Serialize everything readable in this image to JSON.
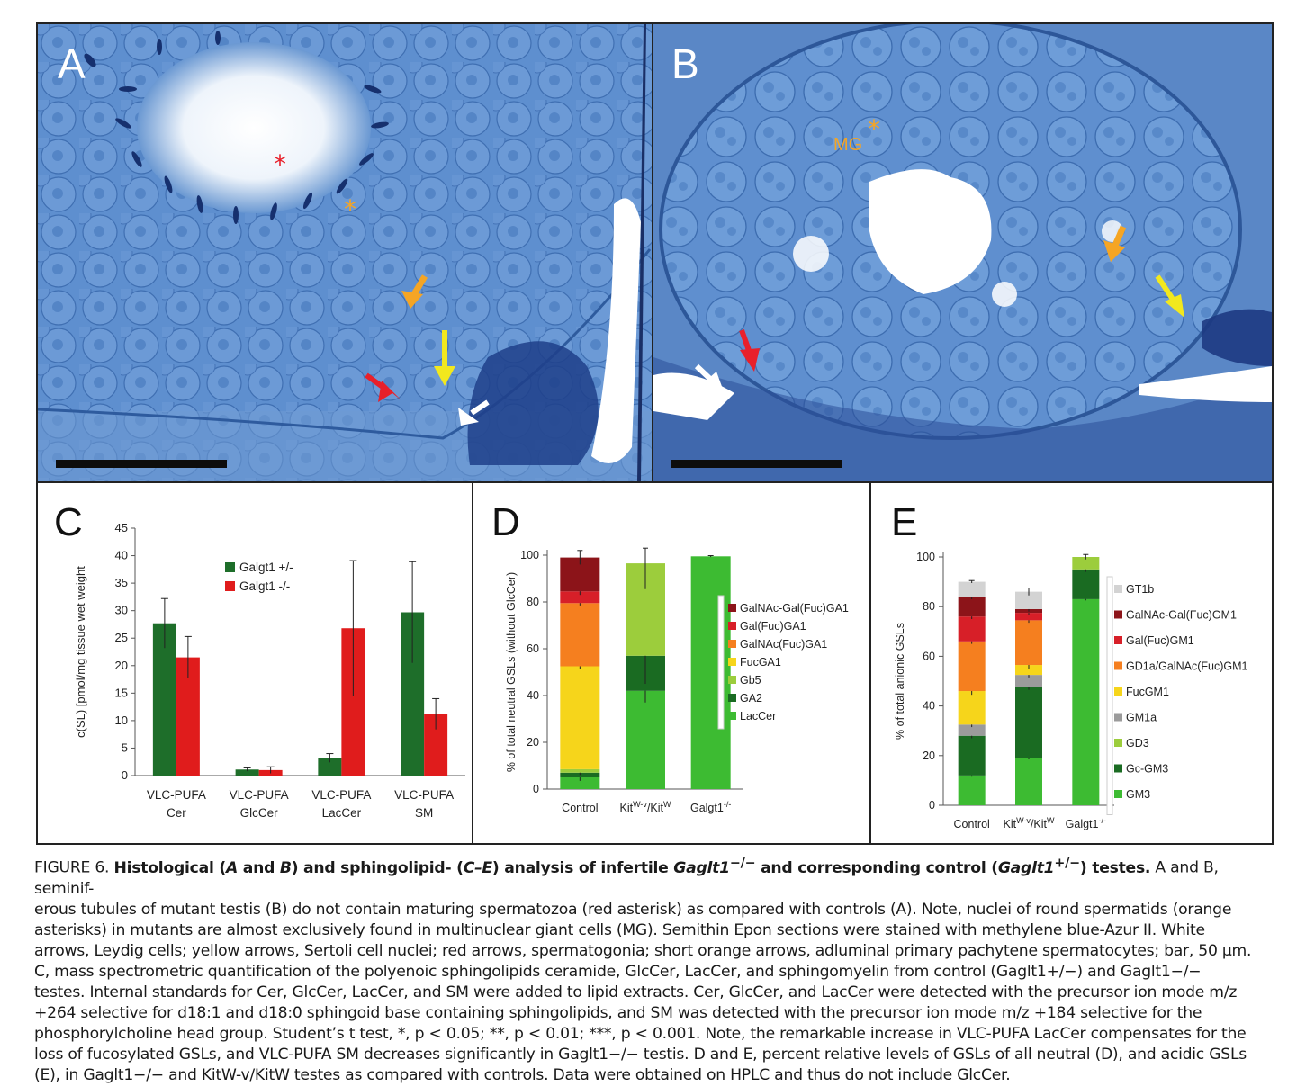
{
  "figure": {
    "panels": {
      "a": {
        "letter": "A",
        "markers": {
          "mg_label": ""
        }
      },
      "b": {
        "letter": "B",
        "mg_label": "MG"
      }
    },
    "colors": {
      "galgt_het": "#1e6e2a",
      "galgt_ko": "#e01c1c",
      "tissue_bg": "#5b8ccc",
      "red_marker": "#e8202a",
      "orange_marker": "#f5a524",
      "yellow_marker": "#f2e81e",
      "white_marker": "#ffffff"
    },
    "caption": {
      "label": "FIGURE 6. ",
      "title_1": "Histological (",
      "title_A": "A",
      "title_and": " and ",
      "title_B": "B",
      "title_2": ") and sphingolipid- (",
      "title_CE": "C–E",
      "title_3": ") analysis of infertile ",
      "title_gene1": "Gaglt1",
      "title_sup1": "−/−",
      "title_4": " and corresponding control (",
      "title_gene2": "Gaglt1",
      "title_sup2": "+/−",
      "title_5": ") testes.",
      "s1": " A and B, seminif-",
      "l2": "erous tubules of mutant testis (B) do not contain maturing spermatozoa (red asterisk) as compared with controls (A). Note, nuclei of round spermatids (orange",
      "l3": "asterisks) in mutants are almost exclusively found in multinuclear giant cells (MG). Semithin Epon sections were stained with methylene blue-Azur II. White",
      "l4": "arrows, Leydig cells; yellow arrows, Sertoli cell nuclei; red arrows, spermatogonia; short orange arrows, adluminal primary pachytene spermatocytes; bar, 50 μm.",
      "l5": "C, mass spectrometric quantification of the polyenoic sphingolipids ceramide, GlcCer, LacCer, and sphingomyelin from control (Gaglt1+/−) and Gaglt1−/−",
      "l6": "testes. Internal standards for Cer, GlcCer, LacCer, and SM were added to lipid extracts. Cer, GlcCer, and LacCer were detected with the precursor ion mode m/z",
      "l7": "+264 selective for d18:1 and d18:0 sphingoid base containing sphingolipids, and SM was detected with the precursor ion mode m/z +184 selective for the",
      "l8": "phosphorylcholine head group. Student’s t test, *, p < 0.05; **, p < 0.01; ***, p < 0.001. Note, the remarkable increase in VLC-PUFA LacCer compensates for the",
      "l9": "loss of fucosylated GSLs, and VLC-PUFA SM decreases significantly in Gaglt1−/− testis. D and E, percent relative levels of GSLs of all neutral (D), and acidic GSLs",
      "l10": "(E), in Gaglt1−/− and KitW-v/KitW testes as compared with controls. Data were obtained on HPLC and thus do not include GlcCer."
    }
  },
  "chart_data": [
    {
      "panel": "C",
      "type": "bar",
      "ylabel": "c(SL) [pmol/mg tissue wet weight",
      "ylim": [
        0,
        45
      ],
      "yticks": [
        0,
        5,
        10,
        15,
        20,
        25,
        30,
        35,
        40,
        45
      ],
      "categories": [
        "VLC-PUFA\nCer",
        "VLC-PUFA\nGlcCer",
        "VLC-PUFA\nLacCer",
        "VLC-PUFA\nSM"
      ],
      "category_lines": [
        [
          "VLC-PUFA",
          "Cer"
        ],
        [
          "VLC-PUFA",
          "GlcCer"
        ],
        [
          "VLC-PUFA",
          "LacCer"
        ],
        [
          "VLC-PUFA",
          "SM"
        ]
      ],
      "legend_position": "top-center",
      "series": [
        {
          "name": "Galgt1 +/-",
          "color": "#1e6e2a",
          "values": [
            27.7,
            1.1,
            3.2,
            29.7
          ],
          "errors": [
            4.5,
            0.3,
            0.8,
            9.2
          ]
        },
        {
          "name": "Galgt1 -/-",
          "color": "#e01c1c",
          "values": [
            21.5,
            1.0,
            26.8,
            11.2
          ],
          "errors": [
            3.8,
            0.6,
            12.3,
            2.8
          ]
        }
      ]
    },
    {
      "panel": "D",
      "type": "bar",
      "stacked": true,
      "ylabel": "% of total neutral GSLs (without GlcCer)",
      "ylim": [
        0,
        100
      ],
      "yticks": [
        0,
        20,
        40,
        60,
        80,
        100
      ],
      "categories": [
        "Control",
        "KitW-v/KitW",
        "Galgt1-/-"
      ],
      "category_parts": [
        [
          "Control",
          ""
        ],
        [
          "Kit",
          "W-v",
          "/Kit",
          "W"
        ],
        [
          "Galgt1",
          "-/-"
        ]
      ],
      "legend_position": "right",
      "legend_order": [
        "GalNAc-Gal(Fuc)GA1",
        "Gal(Fuc)GA1",
        "GalNAc(Fuc)GA1",
        "FucGA1",
        "Gb5",
        "GA2",
        "LacCer"
      ],
      "series": [
        {
          "name": "LacCer",
          "color": "#3dbb32",
          "values": [
            5,
            42,
            99.5
          ],
          "errors": [
            1.5,
            5,
            0.3
          ]
        },
        {
          "name": "GA2",
          "color": "#1a6b22",
          "values": [
            2,
            15,
            0
          ],
          "errors": [
            1,
            12,
            0
          ]
        },
        {
          "name": "Gb5",
          "color": "#9ccd3c",
          "values": [
            1.5,
            39.5,
            0
          ],
          "errors": [
            0,
            11,
            0
          ]
        },
        {
          "name": "FucGA1",
          "color": "#f6d51b",
          "values": [
            44,
            0,
            0
          ],
          "errors": [
            1,
            0,
            0
          ]
        },
        {
          "name": "GalNAc(Fuc)GA1",
          "color": "#f57f1f",
          "values": [
            27,
            0,
            0
          ],
          "errors": [
            1,
            0,
            0
          ]
        },
        {
          "name": "Gal(Fuc)GA1",
          "color": "#d71f28",
          "values": [
            5,
            0,
            0
          ],
          "errors": [
            1.5,
            0,
            0
          ]
        },
        {
          "name": "GalNAc-Gal(Fuc)GA1",
          "color": "#8c1419",
          "values": [
            14.5,
            0,
            0
          ],
          "errors": [
            3,
            0,
            0
          ]
        }
      ]
    },
    {
      "panel": "E",
      "type": "bar",
      "stacked": true,
      "ylabel": "% of total anionic GSLs",
      "ylim": [
        0,
        100
      ],
      "yticks": [
        0,
        20,
        40,
        60,
        80,
        100
      ],
      "categories": [
        "Control",
        "KitW-v/KitW",
        "Galgt1-/-"
      ],
      "category_parts": [
        [
          "Control",
          ""
        ],
        [
          "Kit",
          "W-v",
          "/Kit",
          "W"
        ],
        [
          "Galgt1",
          "-/-"
        ]
      ],
      "legend_position": "right",
      "legend_order": [
        "GT1b",
        "GalNAc-Gal(Fuc)GM1",
        "Gal(Fuc)GM1",
        "GD1a/GalNAc(Fuc)GM1",
        "FucGM1",
        "GM1a",
        "GD3",
        "Gc-GM3",
        "GM3"
      ],
      "series": [
        {
          "name": "GM3",
          "color": "#3dbb32",
          "values": [
            12,
            19,
            83
          ],
          "errors": [
            0.5,
            0.5,
            0.5
          ]
        },
        {
          "name": "Gc-GM3",
          "color": "#1a6b22",
          "values": [
            16,
            28.5,
            12
          ],
          "errors": [
            1,
            1,
            1
          ]
        },
        {
          "name": "GD3",
          "color": "#9ccd3c",
          "values": [
            0,
            0,
            5
          ],
          "errors": [
            0,
            0,
            1
          ]
        },
        {
          "name": "GM1a",
          "color": "#9b9b9b",
          "values": [
            4.5,
            5,
            0
          ],
          "errors": [
            1,
            1,
            0
          ]
        },
        {
          "name": "FucGM1",
          "color": "#f6d51b",
          "values": [
            13.5,
            4,
            0
          ],
          "errors": [
            1.5,
            1.5,
            0
          ]
        },
        {
          "name": "GD1a/GalNAc(Fuc)GM1",
          "color": "#f57f1f",
          "values": [
            20,
            18,
            0
          ],
          "errors": [
            1,
            1,
            0
          ]
        },
        {
          "name": "Gal(Fuc)GM1",
          "color": "#d71f28",
          "values": [
            10,
            3,
            0
          ],
          "errors": [
            1,
            1,
            0
          ]
        },
        {
          "name": "GalNAc-Gal(Fuc)GM1",
          "color": "#8c1419",
          "values": [
            8,
            1.5,
            0
          ],
          "errors": [
            1,
            1,
            0
          ]
        },
        {
          "name": "GT1b",
          "color": "#d3d3d3",
          "values": [
            6,
            7,
            0
          ],
          "errors": [
            0.5,
            1.5,
            0
          ]
        }
      ]
    }
  ]
}
